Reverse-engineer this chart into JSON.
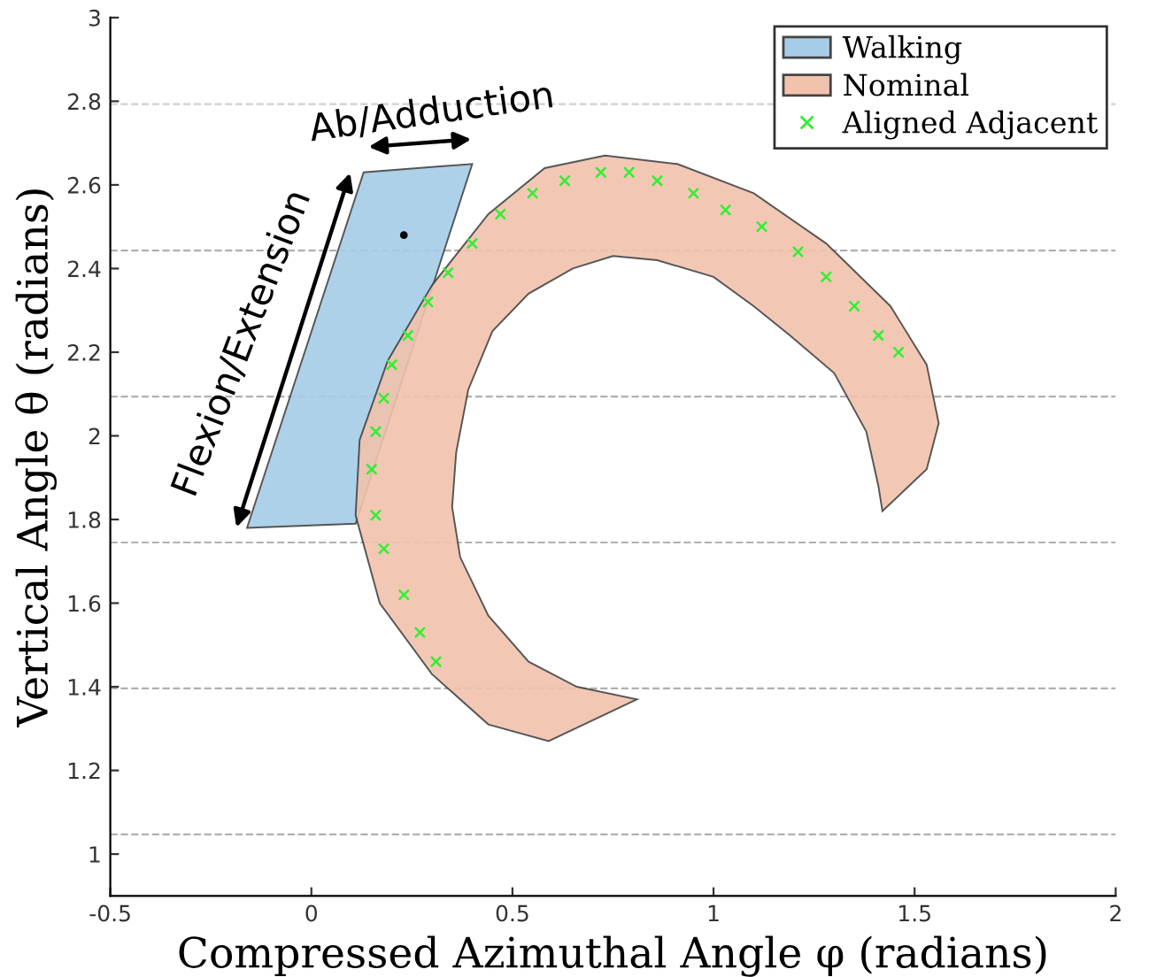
{
  "chart_data": {
    "type": "area",
    "xlabel": "Compressed Azimuthal Angle φ (radians)",
    "ylabel": "Vertical Angle θ (radians)",
    "xlim": [
      -0.5,
      2
    ],
    "xticks": [
      -0.5,
      0,
      0.5,
      1,
      1.5,
      2
    ],
    "ylim": [
      0.9,
      3
    ],
    "yticks": [
      1,
      1.2,
      1.4,
      1.6,
      1.8,
      2,
      2.2,
      2.4,
      2.6,
      2.8,
      3
    ],
    "legend": "top right",
    "grid": false,
    "annotations": [
      "Ab/Adduction",
      "Flexion/Extension"
    ],
    "ref_lines": [
      {
        "axis": "y",
        "value": 1.047,
        "color": "#b0b0b0",
        "line_style": "dashed"
      },
      {
        "axis": "y",
        "value": 1.396,
        "color": "#b0b0b0",
        "line_style": "dashed"
      },
      {
        "axis": "y",
        "value": 1.745,
        "color": "#b0b0b0",
        "line_style": "dashed"
      },
      {
        "axis": "y",
        "value": 2.094,
        "color": "#b0b0b0",
        "line_style": "dashed"
      },
      {
        "axis": "y",
        "value": 2.443,
        "color": "#b0b0b0",
        "line_style": "dashed"
      },
      {
        "axis": "y",
        "value": 2.793,
        "color": "#d0d0d0",
        "line_style": "dashed"
      }
    ],
    "series": [
      {
        "name": "Walking",
        "color": "#a6cde8",
        "x": [
          -0.16,
          0.11,
          0.4,
          0.13
        ],
        "values": [
          1.78,
          1.79,
          2.65,
          2.63
        ]
      },
      {
        "name": "Nominal",
        "color": "#f1c3ad",
        "x": [
          0.81,
          0.59,
          0.44,
          0.3,
          0.17,
          0.11,
          0.12,
          0.19,
          0.3,
          0.44,
          0.58,
          0.73,
          0.91,
          1.1,
          1.28,
          1.44,
          1.53,
          1.56,
          1.53,
          1.42,
          1.41,
          1.38,
          1.3,
          1.19,
          1.1,
          1.0,
          0.86,
          0.75,
          0.65,
          0.54,
          0.45,
          0.39,
          0.36,
          0.35,
          0.37,
          0.44,
          0.54,
          0.66
        ],
        "values": [
          1.37,
          1.27,
          1.31,
          1.43,
          1.6,
          1.81,
          1.99,
          2.18,
          2.36,
          2.53,
          2.64,
          2.67,
          2.65,
          2.58,
          2.46,
          2.31,
          2.17,
          2.03,
          1.92,
          1.82,
          1.88,
          2.01,
          2.15,
          2.24,
          2.31,
          2.38,
          2.42,
          2.43,
          2.4,
          2.34,
          2.25,
          2.11,
          1.96,
          1.83,
          1.71,
          1.57,
          1.46,
          1.4
        ]
      },
      {
        "name": "Aligned Adjacent",
        "type": "scatter",
        "marker": "cross",
        "color": "#33ee33",
        "x": [
          0.31,
          0.27,
          0.23,
          0.18,
          0.16,
          0.15,
          0.16,
          0.18,
          0.2,
          0.24,
          0.29,
          0.34,
          0.4,
          0.47,
          0.55,
          0.63,
          0.72,
          0.79,
          0.86,
          0.95,
          1.03,
          1.12,
          1.21,
          1.28,
          1.35,
          1.41,
          1.46
        ],
        "values": [
          1.46,
          1.53,
          1.62,
          1.73,
          1.81,
          1.92,
          2.01,
          2.09,
          2.17,
          2.24,
          2.32,
          2.39,
          2.46,
          2.53,
          2.58,
          2.61,
          2.63,
          2.63,
          2.61,
          2.58,
          2.54,
          2.5,
          2.44,
          2.38,
          2.31,
          2.24,
          2.2
        ]
      },
      {
        "type": "scatter",
        "marker": "circle",
        "color": "#000000",
        "x": [
          0.23
        ],
        "values": [
          2.48
        ]
      }
    ]
  }
}
